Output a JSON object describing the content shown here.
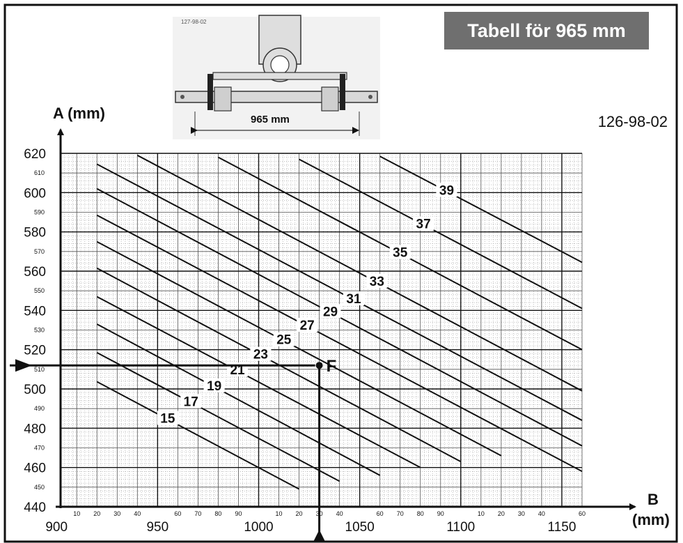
{
  "header": {
    "title": "Tabell för 965 mm",
    "document_code": "126-98-02",
    "illustration_code": "127-98-02",
    "width_label": "965 mm"
  },
  "chart_data": {
    "type": "line",
    "title": "Tabell för 965 mm",
    "xlabel": "B\n(mm)",
    "xlabel_lines": [
      "B",
      "(mm)"
    ],
    "ylabel": "A (mm)",
    "xlim": [
      900,
      1160
    ],
    "ylim": [
      440,
      620
    ],
    "x_major_ticks": [
      900,
      950,
      1000,
      1050,
      1100,
      1150
    ],
    "x_major_labels": [
      "900",
      "950",
      "1000",
      "1050",
      "1100",
      "1150"
    ],
    "x_minor_ticks": [
      910,
      920,
      930,
      940,
      960,
      970,
      980,
      990,
      1010,
      1020,
      1030,
      1040,
      1060,
      1070,
      1080,
      1090,
      1110,
      1120,
      1130,
      1140,
      1160
    ],
    "x_minor_labels": [
      "10",
      "20",
      "30",
      "40",
      "60",
      "70",
      "80",
      "90",
      "10",
      "20",
      "30",
      "40",
      "60",
      "70",
      "80",
      "90",
      "10",
      "20",
      "30",
      "40",
      "60"
    ],
    "y_major_ticks": [
      440,
      460,
      480,
      500,
      520,
      540,
      560,
      580,
      600,
      620
    ],
    "y_major_labels": [
      "440",
      "460",
      "480",
      "500",
      "520",
      "540",
      "560",
      "580",
      "600",
      "620"
    ],
    "y_minor_ticks": [
      450,
      470,
      490,
      510,
      530,
      550,
      570,
      590,
      610
    ],
    "y_minor_labels": [
      "450",
      "470",
      "490",
      "510",
      "530",
      "550",
      "570",
      "590",
      "610"
    ],
    "grid": true,
    "series": [
      {
        "name": "15",
        "x": [
          920,
          1020
        ],
        "y": [
          503.7,
          449
        ]
      },
      {
        "name": "17",
        "x": [
          920,
          1040
        ],
        "y": [
          518.5,
          453
        ]
      },
      {
        "name": "19",
        "x": [
          920,
          1060
        ],
        "y": [
          533,
          456
        ]
      },
      {
        "name": "21",
        "x": [
          920,
          1080
        ],
        "y": [
          547,
          460
        ]
      },
      {
        "name": "23",
        "x": [
          920,
          1100
        ],
        "y": [
          561.5,
          463
        ]
      },
      {
        "name": "25",
        "x": [
          920,
          1120
        ],
        "y": [
          575,
          466
        ]
      },
      {
        "name": "27",
        "x": [
          920,
          1160
        ],
        "y": [
          588.5,
          458
        ]
      },
      {
        "name": "29",
        "x": [
          920,
          1160
        ],
        "y": [
          602,
          471
        ]
      },
      {
        "name": "31",
        "x": [
          920,
          1160
        ],
        "y": [
          614.5,
          484
        ]
      },
      {
        "name": "33",
        "x": [
          940,
          1160
        ],
        "y": [
          619,
          499
        ]
      },
      {
        "name": "35",
        "x": [
          980,
          1160
        ],
        "y": [
          618,
          520
        ]
      },
      {
        "name": "37",
        "x": [
          1020,
          1160
        ],
        "y": [
          617,
          541
        ]
      },
      {
        "name": "39",
        "x": [
          1060,
          1160
        ],
        "y": [
          618.5,
          564.5
        ]
      }
    ],
    "annotations": [
      {
        "label": "F",
        "x": 1030,
        "y": 512
      }
    ]
  }
}
